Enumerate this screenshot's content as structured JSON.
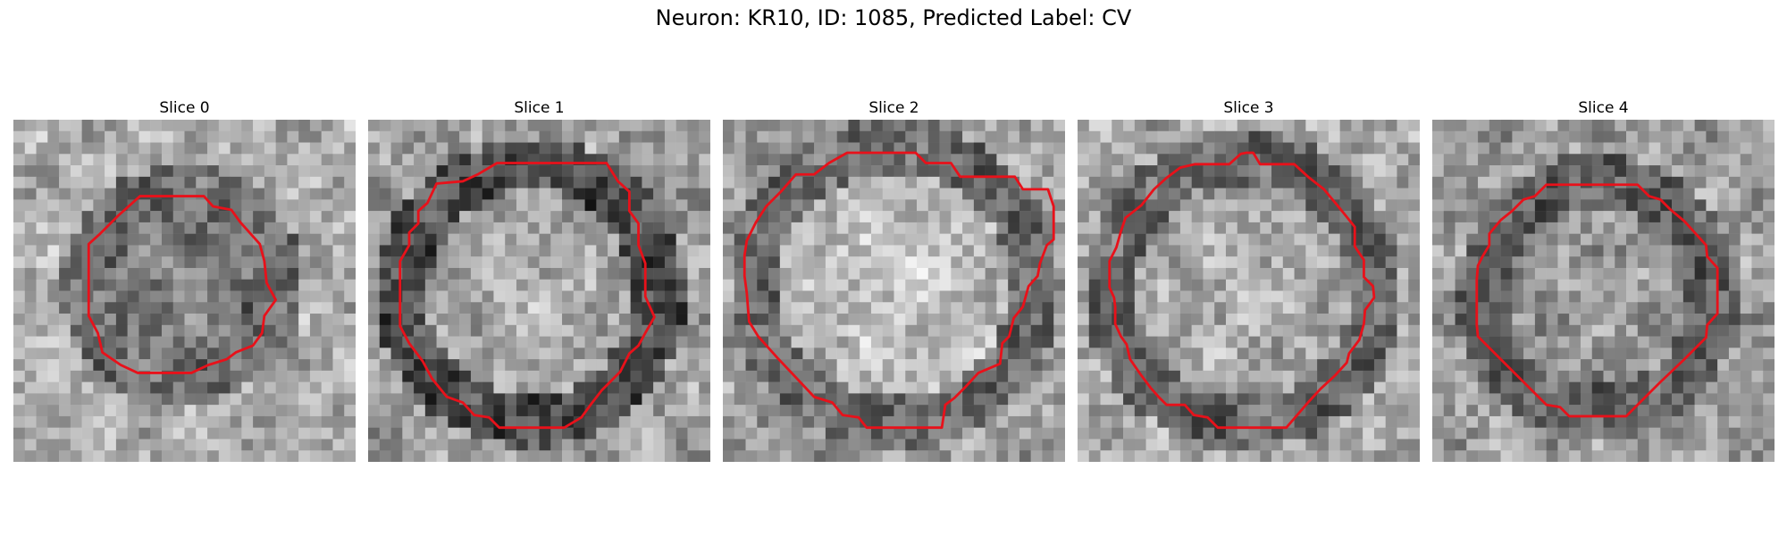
{
  "figure": {
    "title": "Neuron: KR10, ID: 1085, Predicted Label: CV"
  },
  "panels": [
    {
      "title": "Slice 0"
    },
    {
      "title": "Slice 1"
    },
    {
      "title": "Slice 2"
    },
    {
      "title": "Slice 3"
    },
    {
      "title": "Slice 4"
    }
  ],
  "colors": {
    "contour": "#e8111a",
    "colormap": "gray"
  }
}
